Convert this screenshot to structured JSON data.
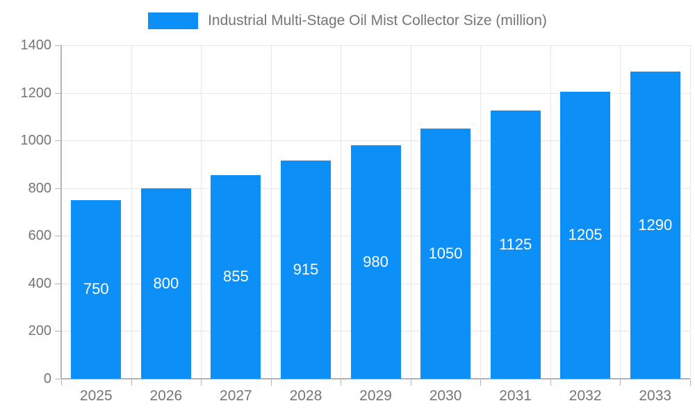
{
  "legend": {
    "label": "Industrial Multi-Stage Oil Mist Collector Size (million)"
  },
  "colors": {
    "bar": "#0d8ff8",
    "bar_label": "#ffffff",
    "grid": "#e6e6e6",
    "axis": "#b3b3b3",
    "text": "#757575"
  },
  "chart_data": {
    "type": "bar",
    "title": "Industrial Multi-Stage Oil Mist Collector Size (million)",
    "categories": [
      "2025",
      "2026",
      "2027",
      "2028",
      "2029",
      "2030",
      "2031",
      "2032",
      "2033"
    ],
    "values": [
      750,
      800,
      855,
      915,
      980,
      1050,
      1125,
      1205,
      1290
    ],
    "xlabel": "",
    "ylabel": "",
    "ylim": [
      0,
      1400
    ],
    "ytick_step": 200,
    "ytick_labels": [
      "0",
      "200",
      "400",
      "600",
      "800",
      "1000",
      "1200",
      "1400"
    ],
    "grid": true,
    "legend_position": "top",
    "value_labels": "inside-center"
  }
}
